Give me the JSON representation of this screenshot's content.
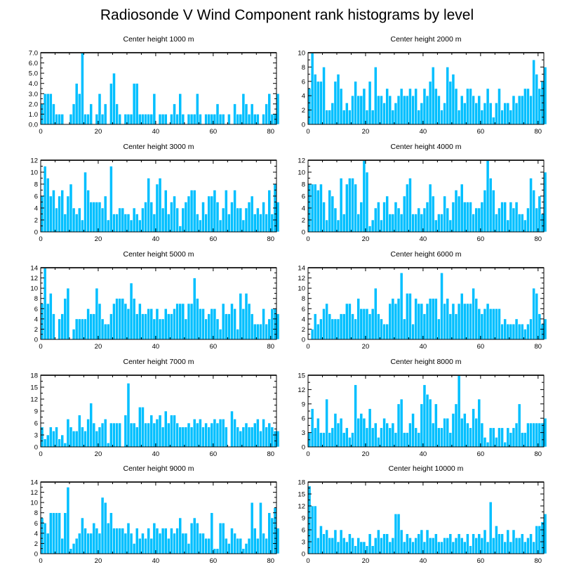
{
  "title": "Radiosonde V Wind Component rank histograms by level",
  "colors": {
    "bar": "#00bfff",
    "bar_edge": "#ffffff",
    "axis": "#000000",
    "top_frame": "#555555"
  },
  "chart_data": [
    {
      "type": "bar",
      "title": "Center height 1000 m",
      "xlim": [
        0,
        82
      ],
      "ylim": [
        0,
        7
      ],
      "xticks": [
        0,
        20,
        40,
        60,
        80
      ],
      "yticks": [
        0,
        1,
        2,
        3,
        4,
        5,
        6,
        7
      ],
      "ytick_labels": [
        "0.0",
        "1.0",
        "2.0",
        "3.0",
        "4.0",
        "5.0",
        "6.0",
        "7.0"
      ],
      "values": [
        2,
        3,
        3,
        3,
        2,
        1,
        1,
        1,
        0,
        0,
        1,
        2,
        4,
        3,
        7,
        1,
        1,
        2,
        0,
        1,
        3,
        1,
        2,
        0,
        4,
        5,
        2,
        1,
        0,
        1,
        1,
        1,
        4,
        4,
        1,
        1,
        1,
        1,
        1,
        3,
        0,
        1,
        1,
        1,
        0,
        1,
        2,
        1,
        3,
        1,
        0,
        1,
        1,
        1,
        3,
        1,
        0,
        1,
        1,
        1,
        1,
        2,
        1,
        1,
        0,
        1,
        0,
        2,
        1,
        1,
        3,
        2,
        1,
        2,
        1,
        1,
        0,
        1,
        2,
        3,
        1,
        1,
        3
      ]
    },
    {
      "type": "bar",
      "title": "Center height 2000 m",
      "xlim": [
        0,
        82
      ],
      "ylim": [
        0,
        10
      ],
      "xticks": [
        0,
        20,
        40,
        60,
        80
      ],
      "yticks": [
        0,
        2,
        4,
        6,
        8,
        10
      ],
      "values": [
        5,
        10,
        7,
        6,
        6,
        8,
        2,
        2,
        3,
        6,
        7,
        5,
        2,
        3,
        2,
        4,
        6,
        4,
        4,
        5,
        2,
        6,
        2,
        8,
        4,
        4,
        3,
        5,
        4,
        2,
        3,
        4,
        5,
        4,
        4,
        5,
        4,
        5,
        2,
        3,
        5,
        4,
        6,
        8,
        5,
        4,
        2,
        3,
        8,
        6,
        7,
        5,
        2,
        4,
        3,
        5,
        5,
        4,
        3,
        4,
        2,
        3,
        5,
        3,
        1,
        3,
        5,
        2,
        3,
        3,
        2,
        4,
        3,
        4,
        4,
        5,
        5,
        4,
        9,
        7,
        5,
        6,
        8
      ]
    },
    {
      "type": "bar",
      "title": "Center height 3000 m",
      "xlim": [
        0,
        82
      ],
      "ylim": [
        0,
        12
      ],
      "xticks": [
        0,
        20,
        40,
        60,
        80
      ],
      "yticks": [
        0,
        2,
        4,
        6,
        8,
        10,
        12
      ],
      "values": [
        6,
        11,
        9,
        6,
        7,
        4,
        6,
        7,
        3,
        6,
        8,
        4,
        3,
        4,
        2,
        10,
        7,
        5,
        5,
        5,
        5,
        4,
        6,
        2,
        11,
        3,
        3,
        4,
        4,
        3,
        3,
        2,
        4,
        3,
        2,
        4,
        5,
        9,
        5,
        3,
        8,
        9,
        4,
        7,
        3,
        5,
        6,
        4,
        1,
        4,
        5,
        6,
        7,
        7,
        3,
        2,
        5,
        3,
        6,
        6,
        7,
        5,
        2,
        4,
        7,
        3,
        5,
        7,
        4,
        4,
        2,
        4,
        5,
        6,
        3,
        4,
        3,
        5,
        3,
        7,
        3,
        8,
        5
      ]
    },
    {
      "type": "bar",
      "title": "Center height 4000 m",
      "xlim": [
        0,
        82
      ],
      "ylim": [
        0,
        12
      ],
      "xticks": [
        0,
        20,
        40,
        60,
        80
      ],
      "yticks": [
        0,
        2,
        4,
        6,
        8,
        10,
        12
      ],
      "values": [
        8,
        8,
        8,
        7,
        8,
        5,
        2,
        7,
        6,
        4,
        2,
        9,
        3,
        8,
        9,
        9,
        8,
        3,
        5,
        12,
        10,
        1,
        2,
        4,
        5,
        2,
        5,
        6,
        3,
        3,
        5,
        4,
        3,
        6,
        8,
        9,
        3,
        3,
        4,
        3,
        4,
        5,
        8,
        6,
        2,
        3,
        3,
        6,
        4,
        2,
        5,
        7,
        6,
        8,
        5,
        5,
        5,
        3,
        4,
        4,
        5,
        7,
        12,
        9,
        7,
        3,
        4,
        5,
        5,
        2,
        5,
        4,
        5,
        3,
        3,
        2,
        4,
        9,
        7,
        4,
        6,
        3,
        10
      ]
    },
    {
      "type": "bar",
      "title": "Center height 5000 m",
      "xlim": [
        0,
        82
      ],
      "ylim": [
        0,
        14
      ],
      "xticks": [
        0,
        20,
        40,
        60,
        80
      ],
      "yticks": [
        0,
        2,
        4,
        6,
        8,
        10,
        12,
        14
      ],
      "values": [
        7,
        14,
        7,
        9,
        5,
        0,
        4,
        5,
        8,
        10,
        0,
        2,
        4,
        4,
        4,
        4,
        6,
        5,
        5,
        10,
        7,
        4,
        3,
        3,
        5,
        7,
        8,
        8,
        8,
        7,
        6,
        11,
        8,
        5,
        7,
        5,
        5,
        6,
        6,
        4,
        6,
        4,
        4,
        6,
        5,
        5,
        6,
        7,
        7,
        7,
        4,
        7,
        7,
        12,
        8,
        6,
        6,
        4,
        5,
        6,
        6,
        4,
        2,
        7,
        5,
        5,
        7,
        6,
        2,
        9,
        6,
        9,
        7,
        5,
        3,
        3,
        3,
        6,
        3,
        4,
        6,
        6,
        5
      ]
    },
    {
      "type": "bar",
      "title": "Center height 6000 m",
      "xlim": [
        0,
        82
      ],
      "ylim": [
        0,
        14
      ],
      "xticks": [
        0,
        20,
        40,
        60,
        80
      ],
      "yticks": [
        0,
        2,
        4,
        6,
        8,
        10,
        12,
        14
      ],
      "values": [
        0,
        2,
        5,
        3,
        4,
        6,
        7,
        5,
        4,
        4,
        4,
        5,
        5,
        7,
        7,
        5,
        4,
        8,
        6,
        6,
        6,
        5,
        6,
        10,
        5,
        4,
        3,
        3,
        7,
        8,
        7,
        8,
        13,
        4,
        9,
        9,
        3,
        8,
        7,
        7,
        5,
        7,
        8,
        8,
        8,
        4,
        13,
        7,
        8,
        5,
        7,
        5,
        7,
        9,
        7,
        7,
        7,
        10,
        8,
        6,
        5,
        6,
        7,
        6,
        6,
        6,
        6,
        3,
        4,
        3,
        3,
        3,
        4,
        3,
        3,
        2,
        3,
        4,
        10,
        9,
        5,
        3,
        4
      ]
    },
    {
      "type": "bar",
      "title": "Center height 7000 m",
      "xlim": [
        0,
        82
      ],
      "ylim": [
        0,
        18
      ],
      "xticks": [
        0,
        20,
        40,
        60,
        80
      ],
      "yticks": [
        0,
        3,
        6,
        9,
        12,
        15,
        18
      ],
      "values": [
        5,
        2,
        3,
        5,
        4,
        5,
        2,
        3,
        1,
        7,
        5,
        4,
        4,
        8,
        5,
        4,
        7,
        11,
        6,
        4,
        5,
        6,
        7,
        1,
        6,
        6,
        6,
        6,
        0,
        8,
        16,
        6,
        6,
        5,
        10,
        10,
        6,
        6,
        8,
        6,
        7,
        8,
        5,
        9,
        6,
        8,
        8,
        6,
        5,
        5,
        5,
        6,
        5,
        7,
        6,
        7,
        5,
        6,
        5,
        6,
        7,
        6,
        7,
        7,
        5,
        0,
        9,
        7,
        5,
        4,
        5,
        6,
        5,
        5,
        6,
        7,
        4,
        7,
        5,
        6,
        5,
        4,
        4
      ]
    },
    {
      "type": "bar",
      "title": "Center height 8000 m",
      "xlim": [
        0,
        82
      ],
      "ylim": [
        0,
        15
      ],
      "xticks": [
        0,
        20,
        40,
        60,
        80
      ],
      "yticks": [
        0,
        3,
        6,
        9,
        12,
        15
      ],
      "values": [
        3,
        8,
        4,
        6,
        3,
        3,
        10,
        3,
        4,
        7,
        5,
        6,
        3,
        4,
        2,
        3,
        13,
        6,
        7,
        6,
        4,
        8,
        4,
        5,
        2,
        4,
        6,
        5,
        4,
        5,
        3,
        9,
        10,
        3,
        3,
        5,
        7,
        4,
        3,
        9,
        13,
        11,
        10,
        5,
        9,
        4,
        4,
        6,
        6,
        3,
        7,
        9,
        15,
        6,
        7,
        5,
        4,
        8,
        6,
        10,
        5,
        2,
        1,
        4,
        4,
        2,
        4,
        4,
        1,
        4,
        3,
        4,
        5,
        9,
        3,
        3,
        5,
        5,
        5,
        5,
        5,
        5,
        6
      ]
    },
    {
      "type": "bar",
      "title": "Center height 9000 m",
      "xlim": [
        0,
        82
      ],
      "ylim": [
        0,
        14
      ],
      "xticks": [
        0,
        20,
        40,
        60,
        80
      ],
      "yticks": [
        0,
        2,
        4,
        6,
        8,
        10,
        12,
        14
      ],
      "values": [
        7,
        6,
        4,
        8,
        8,
        8,
        8,
        3,
        8,
        13,
        1,
        2,
        3,
        4,
        7,
        5,
        4,
        4,
        6,
        5,
        4,
        11,
        10,
        6,
        8,
        5,
        5,
        5,
        5,
        4,
        6,
        4,
        2,
        5,
        3,
        4,
        3,
        5,
        3,
        6,
        5,
        4,
        5,
        5,
        3,
        5,
        4,
        5,
        7,
        4,
        4,
        2,
        6,
        7,
        6,
        4,
        4,
        3,
        3,
        8,
        1,
        1,
        6,
        6,
        3,
        2,
        5,
        4,
        3,
        3,
        1,
        2,
        3,
        10,
        5,
        3,
        10,
        4,
        3,
        8,
        7,
        9,
        5
      ]
    },
    {
      "type": "bar",
      "title": "Center height 10000 m",
      "xlim": [
        0,
        82
      ],
      "ylim": [
        0,
        18
      ],
      "xticks": [
        0,
        20,
        40,
        60,
        80
      ],
      "yticks": [
        0,
        3,
        6,
        9,
        12,
        15,
        18
      ],
      "values": [
        17,
        12,
        12,
        4,
        7,
        5,
        6,
        4,
        4,
        6,
        3,
        6,
        4,
        3,
        5,
        4,
        2,
        4,
        3,
        3,
        2,
        5,
        2,
        4,
        6,
        4,
        5,
        5,
        3,
        4,
        10,
        10,
        6,
        3,
        5,
        4,
        3,
        4,
        5,
        6,
        3,
        6,
        4,
        4,
        5,
        3,
        3,
        4,
        4,
        5,
        3,
        4,
        5,
        4,
        3,
        5,
        2,
        5,
        4,
        5,
        4,
        6,
        3,
        13,
        4,
        7,
        5,
        5,
        3,
        6,
        3,
        6,
        4,
        4,
        5,
        3,
        4,
        5,
        3,
        7,
        7,
        8,
        10
      ]
    }
  ]
}
